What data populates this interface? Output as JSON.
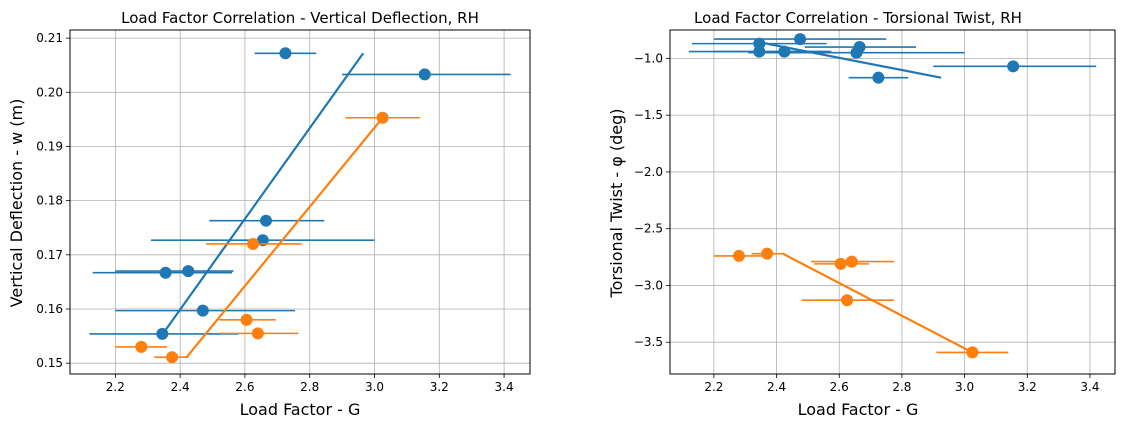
{
  "chart_data": [
    {
      "type": "scatter",
      "title": "Load Factor Correlation - Vertical Deflection, RH",
      "xlabel": "Load Factor - G",
      "ylabel": "Vertical Deflection - w (m)",
      "xlim": [
        2.06,
        3.48
      ],
      "ylim": [
        0.148,
        0.2115
      ],
      "xticks": [
        2.2,
        2.4,
        2.6,
        2.8,
        3.0,
        3.2,
        3.4
      ],
      "xtick_labels": [
        "2.2",
        "2.4",
        "2.6",
        "2.8",
        "3.0",
        "3.2",
        "3.4"
      ],
      "yticks": [
        0.15,
        0.16,
        0.17,
        0.18,
        0.19,
        0.2,
        0.21
      ],
      "ytick_labels": [
        "0.15",
        "0.16",
        "0.17",
        "0.18",
        "0.19",
        "0.20",
        "0.21"
      ],
      "grid": true,
      "series": [
        {
          "color": "#1f77b4",
          "points": [
            {
              "x": 2.725,
              "y": 0.2072,
              "xerr": [
                2.63,
                2.82
              ]
            },
            {
              "x": 3.155,
              "y": 0.2033,
              "xerr": [
                2.9,
                3.42
              ]
            },
            {
              "x": 2.665,
              "y": 0.1763,
              "xerr": [
                2.49,
                2.845
              ]
            },
            {
              "x": 2.655,
              "y": 0.1727,
              "xerr": [
                2.31,
                3.0
              ]
            },
            {
              "x": 2.425,
              "y": 0.167,
              "xerr": [
                2.2,
                2.565
              ]
            },
            {
              "x": 2.355,
              "y": 0.1667,
              "xerr": [
                2.13,
                2.56
              ]
            },
            {
              "x": 2.47,
              "y": 0.1597,
              "xerr": [
                2.2,
                2.755
              ]
            },
            {
              "x": 2.345,
              "y": 0.1554,
              "xerr": [
                2.12,
                2.58
              ]
            }
          ],
          "fit": {
            "x": [
              2.345,
              2.965
            ],
            "y": [
              0.1553,
              0.2072
            ]
          }
        },
        {
          "color": "#ff7f0e",
          "points": [
            {
              "x": 3.025,
              "y": 0.1953,
              "xerr": [
                2.91,
                3.14
              ]
            },
            {
              "x": 2.625,
              "y": 0.172,
              "xerr": [
                2.48,
                2.775
              ]
            },
            {
              "x": 2.605,
              "y": 0.158,
              "xerr": [
                2.52,
                2.695
              ]
            },
            {
              "x": 2.64,
              "y": 0.1555,
              "xerr": [
                2.52,
                2.765
              ]
            },
            {
              "x": 2.28,
              "y": 0.153,
              "xerr": [
                2.2,
                2.36
              ]
            },
            {
              "x": 2.375,
              "y": 0.1511,
              "xerr": [
                2.32,
                2.425
              ]
            }
          ],
          "fit": {
            "x": [
              2.42,
              3.025
            ],
            "y": [
              0.1511,
              0.1953
            ]
          }
        }
      ]
    },
    {
      "type": "scatter",
      "title": "Load Factor Correlation - Torsional Twist, RH",
      "xlabel": "Load Factor - G",
      "ylabel": "Torsional Twist - φ (deg)",
      "xlim": [
        2.06,
        3.48
      ],
      "ylim": [
        -3.78,
        -0.75
      ],
      "xticks": [
        2.2,
        2.4,
        2.6,
        2.8,
        3.0,
        3.2,
        3.4
      ],
      "xtick_labels": [
        "2.2",
        "2.4",
        "2.6",
        "2.8",
        "3.0",
        "3.2",
        "3.4"
      ],
      "yticks": [
        -3.5,
        -3.0,
        -2.5,
        -2.0,
        -1.5,
        -1.0
      ],
      "ytick_labels": [
        "−3.5",
        "−3.0",
        "−2.5",
        "−2.0",
        "−1.5",
        "−1.0"
      ],
      "grid": true,
      "series": [
        {
          "color": "#1f77b4",
          "points": [
            {
              "x": 2.475,
              "y": -0.83,
              "xerr": [
                2.2,
                2.75
              ]
            },
            {
              "x": 2.345,
              "y": -0.87,
              "xerr": [
                2.13,
                2.56
              ]
            },
            {
              "x": 2.665,
              "y": -0.9,
              "xerr": [
                2.49,
                2.845
              ]
            },
            {
              "x": 2.655,
              "y": -0.95,
              "xerr": [
                2.31,
                3.0
              ]
            },
            {
              "x": 2.345,
              "y": -0.94,
              "xerr": [
                2.12,
                2.575
              ]
            },
            {
              "x": 2.425,
              "y": -0.94,
              "xerr": [
                2.2,
                2.565
              ]
            },
            {
              "x": 3.155,
              "y": -1.07,
              "xerr": [
                2.9,
                3.42
              ]
            },
            {
              "x": 2.725,
              "y": -1.17,
              "xerr": [
                2.63,
                2.82
              ]
            }
          ],
          "fit": {
            "x": [
              2.35,
              2.925
            ],
            "y": [
              -0.86,
              -1.17
            ]
          }
        },
        {
          "color": "#ff7f0e",
          "points": [
            {
              "x": 2.28,
              "y": -2.74,
              "xerr": [
                2.2,
                2.36
              ]
            },
            {
              "x": 2.37,
              "y": -2.72,
              "xerr": [
                2.32,
                2.425
              ]
            },
            {
              "x": 2.605,
              "y": -2.81,
              "xerr": [
                2.52,
                2.695
              ]
            },
            {
              "x": 2.64,
              "y": -2.79,
              "xerr": [
                2.51,
                2.775
              ]
            },
            {
              "x": 2.625,
              "y": -3.13,
              "xerr": [
                2.48,
                2.775
              ]
            },
            {
              "x": 3.025,
              "y": -3.59,
              "xerr": [
                2.91,
                3.14
              ]
            }
          ],
          "fit": {
            "x": [
              2.42,
              3.025
            ],
            "y": [
              -2.72,
              -3.59
            ]
          }
        }
      ]
    }
  ]
}
